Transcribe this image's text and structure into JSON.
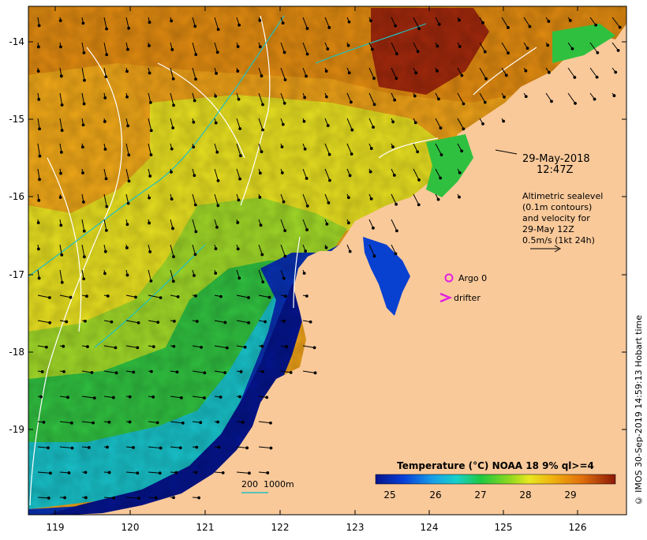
{
  "map": {
    "date": "29-May-2018",
    "time": "12:47Z",
    "altimetry_lines": [
      "Altimetric sealevel",
      "(0.1m contours)",
      "and velocity for",
      "29-May 12Z",
      "0.5m/s (1kt 24h)"
    ],
    "legend_argo": "Argo 0",
    "legend_drifter": "drifter",
    "depth_labels": [
      "200",
      "1000m"
    ],
    "colorbar_title": "Temperature (°C) NOAA 18 9% ql>=4",
    "colorbar_ticks": [
      "25",
      "26",
      "27",
      "28",
      "29"
    ],
    "lon_ticks": [
      "119",
      "120",
      "121",
      "122",
      "123",
      "124",
      "125",
      "126"
    ],
    "lat_ticks": [
      "-14",
      "-15",
      "-16",
      "-17",
      "-18",
      "-19"
    ],
    "credit": "© IMOS 30-Sep-2019 14:59:13 Hobart time",
    "colors": {
      "land": "#f9c99a",
      "sst_cold": "#04148c",
      "sst_cool": "#18c8d8",
      "sst_mid": "#2ec83a",
      "sst_warm": "#e8e820",
      "sst_hot": "#e8980c",
      "sst_hottest": "#9c200c",
      "argo": "#e020e0",
      "contour_200m": "#20c0c0"
    }
  }
}
